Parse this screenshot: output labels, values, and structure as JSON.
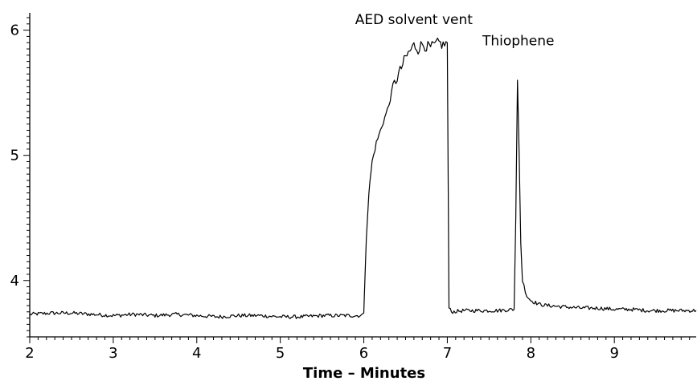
{
  "chart_data": {
    "type": "line",
    "title": "",
    "xlabel": "Time – Minutes",
    "ylabel": "",
    "xlim": [
      2,
      9.98
    ],
    "ylim": [
      3.55,
      6.1
    ],
    "x_ticks": [
      "2",
      "3",
      "4",
      "5",
      "6",
      "7",
      "8",
      "9"
    ],
    "y_ticks": [
      "4",
      "5",
      "6"
    ],
    "grid": false,
    "legend": "none",
    "line_color": "#000000",
    "annotations": [
      {
        "text": "AED solvent vent",
        "x": 6.6,
        "y": 6.05
      },
      {
        "text": "Thiophene",
        "x": 7.85,
        "y": 5.88
      }
    ],
    "series": [
      {
        "x": [
          2.0,
          2.25,
          2.5,
          2.75,
          3.0,
          3.25,
          3.5,
          3.75,
          4.0,
          4.25,
          4.5,
          4.75,
          5.0,
          5.25,
          5.5,
          5.75,
          5.98,
          6.0,
          6.03,
          6.06,
          6.1,
          6.15,
          6.2,
          6.25,
          6.3,
          6.35,
          6.4,
          6.45,
          6.5,
          6.55,
          6.6,
          6.65,
          6.7,
          6.75,
          6.8,
          6.85,
          6.9,
          6.95,
          7.0,
          7.02,
          7.05,
          7.2,
          7.4,
          7.6,
          7.8,
          7.82,
          7.84,
          7.86,
          7.88,
          7.9,
          7.95,
          8.0,
          8.1,
          8.2,
          8.4,
          8.6,
          8.8,
          9.0,
          9.2,
          9.4,
          9.6,
          9.8,
          9.98
        ],
        "y": [
          3.73,
          3.74,
          3.74,
          3.73,
          3.72,
          3.73,
          3.72,
          3.73,
          3.72,
          3.71,
          3.72,
          3.72,
          3.71,
          3.71,
          3.72,
          3.72,
          3.72,
          3.74,
          4.35,
          4.7,
          4.95,
          5.1,
          5.2,
          5.3,
          5.4,
          5.55,
          5.62,
          5.7,
          5.78,
          5.83,
          5.88,
          5.85,
          5.89,
          5.87,
          5.86,
          5.88,
          5.9,
          5.88,
          5.9,
          3.78,
          3.75,
          3.76,
          3.76,
          3.76,
          3.77,
          4.5,
          5.6,
          5.0,
          4.3,
          4.0,
          3.88,
          3.84,
          3.81,
          3.8,
          3.79,
          3.78,
          3.78,
          3.77,
          3.77,
          3.76,
          3.76,
          3.76,
          3.76
        ]
      }
    ]
  }
}
